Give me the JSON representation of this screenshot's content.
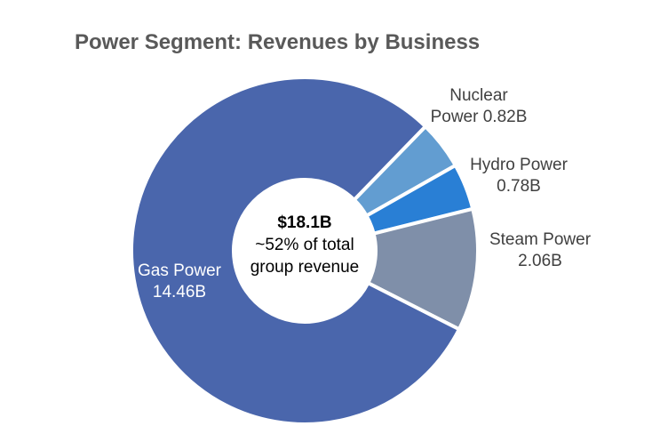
{
  "title": "Power Segment: Revenues by Business",
  "center": {
    "value": "$18.1B",
    "line1": "~52% of total",
    "line2": "group revenue"
  },
  "labels": {
    "gas": {
      "line1": "Gas Power",
      "line2": "14.46B"
    },
    "nuclear": {
      "line1": "Nuclear",
      "line2": "Power 0.82B"
    },
    "hydro": {
      "line1": "Hydro Power",
      "line2": "0.78B"
    },
    "steam": {
      "line1": "Steam Power",
      "line2": "2.06B"
    }
  },
  "colors": {
    "gas": "#4a66ac",
    "nuclear": "#629dd1",
    "hydro": "#297fd5",
    "steam": "#7f8fa9"
  },
  "chart_data": {
    "type": "pie",
    "subtype": "donut",
    "title": "Power Segment: Revenues by Business",
    "categories": [
      "Gas Power",
      "Nuclear Power",
      "Hydro Power",
      "Steam Power"
    ],
    "values": [
      14.46,
      0.82,
      0.78,
      2.06
    ],
    "unit": "B",
    "total": 18.1,
    "center_annotation": "$18.1B ~52% of total group revenue",
    "legend": "none (data labels on/near slices)"
  }
}
